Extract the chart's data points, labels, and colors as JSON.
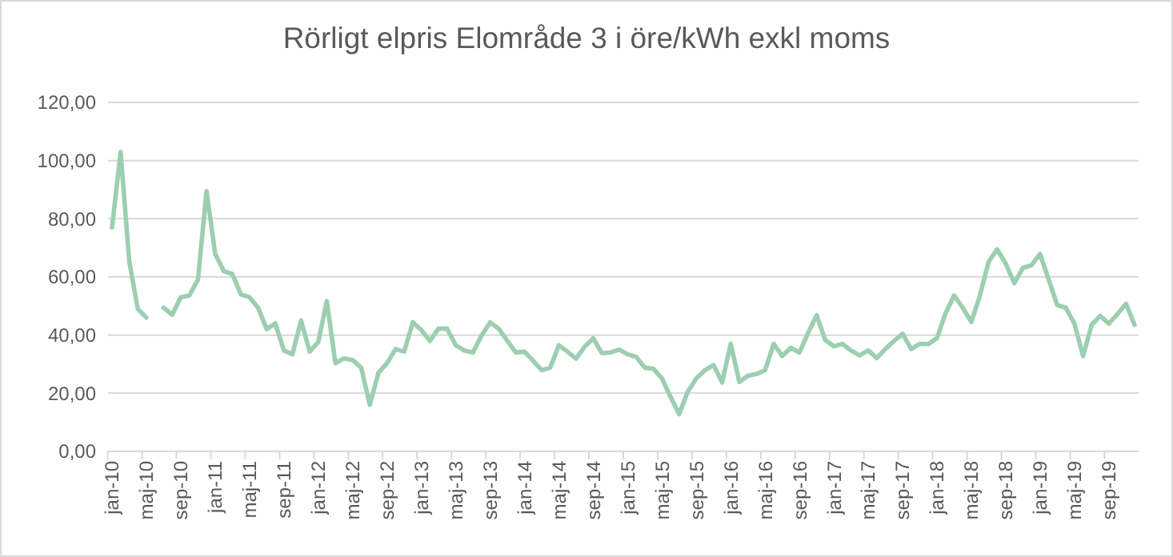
{
  "chart_data": {
    "type": "line",
    "title": "Rörligt elpris Elområde 3 i öre/kWh exkl moms",
    "categories": [
      "jan-10",
      null,
      null,
      null,
      "maj-10",
      null,
      null,
      null,
      "sep-10",
      null,
      null,
      null,
      "jan-11",
      null,
      null,
      null,
      "maj-11",
      null,
      null,
      null,
      "sep-11",
      null,
      null,
      null,
      "jan-12",
      null,
      null,
      null,
      "maj-12",
      null,
      null,
      null,
      "sep-12",
      null,
      null,
      null,
      "jan-13",
      null,
      null,
      null,
      "maj-13",
      null,
      null,
      null,
      "sep-13",
      null,
      null,
      null,
      "jan-14",
      null,
      null,
      null,
      "maj-14",
      null,
      null,
      null,
      "sep-14",
      null,
      null,
      null,
      "jan-15",
      null,
      null,
      null,
      "maj-15",
      null,
      null,
      null,
      "sep-15",
      null,
      null,
      null,
      "jan-16",
      null,
      null,
      null,
      "maj-16",
      null,
      null,
      null,
      "sep-16",
      null,
      null,
      null,
      "jan-17",
      null,
      null,
      null,
      "maj-17",
      null,
      null,
      null,
      "sep-17",
      null,
      null,
      null,
      "jan-18",
      null,
      null,
      null,
      "maj-18",
      null,
      null,
      null,
      "sep-18",
      null,
      null,
      null,
      "jan-19",
      null,
      null,
      null,
      "maj-19",
      null,
      null,
      null,
      "sep-19",
      null,
      null,
      null
    ],
    "series": [
      {
        "color": "#9ccfb0",
        "values": [
          77,
          103,
          65.5,
          49,
          46,
          null,
          49.4,
          47,
          53,
          53.6,
          59,
          89.5,
          68,
          62,
          61,
          54,
          53,
          49.4,
          42,
          44,
          34.7,
          33.4,
          45,
          34.3,
          37.6,
          51.7,
          30.3,
          32,
          31.4,
          28.8,
          16,
          27,
          30.3,
          35.2,
          34.3,
          44.4,
          41.7,
          38,
          42.2,
          42.2,
          36.5,
          34.7,
          34,
          39.8,
          44.4,
          42.2,
          38,
          34,
          34.3,
          31.2,
          27.9,
          28.8,
          36.5,
          34.3,
          31.9,
          36,
          38.9,
          33.8,
          34,
          35,
          33.4,
          32.5,
          28.8,
          28.4,
          25.1,
          18.7,
          12.8,
          20.5,
          25.1,
          27.9,
          29.7,
          23.7,
          37,
          23.9,
          26,
          26.6,
          27.9,
          37,
          32.8,
          35.6,
          34,
          40.7,
          46.8,
          38.3,
          36.1,
          37,
          34.7,
          33,
          34.7,
          32.1,
          35.2,
          38,
          40.4,
          35.2,
          37,
          36.9,
          38.9,
          47.5,
          53.6,
          49.4,
          44.5,
          53.6,
          65.1,
          69.5,
          64.6,
          57.8,
          63.1,
          64,
          67.9,
          59.1,
          50.3,
          49.4,
          43.9,
          32.8,
          43.5,
          46.6,
          43.9,
          47.2,
          50.8,
          43.5
        ]
      }
    ],
    "ylim": [
      0,
      120
    ],
    "yticks": [
      {
        "value": 0,
        "label": "0,00"
      },
      {
        "value": 20,
        "label": "20,00"
      },
      {
        "value": 40,
        "label": "40,00"
      },
      {
        "value": 60,
        "label": "60,00"
      },
      {
        "value": 80,
        "label": "80,00"
      },
      {
        "value": 100,
        "label": "100,00"
      },
      {
        "value": 120,
        "label": "120,00"
      }
    ],
    "grid": "y"
  }
}
